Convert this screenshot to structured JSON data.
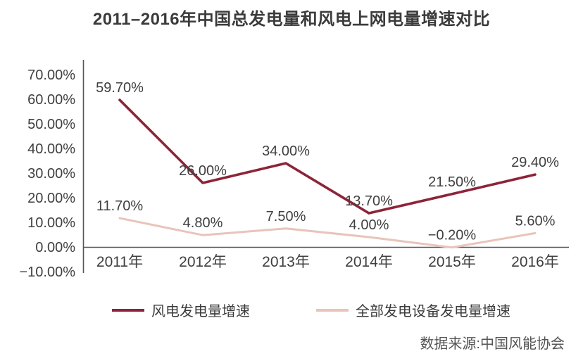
{
  "title": "2011–2016年中国总发电量和风电上网电量增速对比",
  "source": "数据来源:中国风能协会",
  "colors": {
    "axis": "#555555",
    "text": "#3f3f3f",
    "wind_series": "#8d2439",
    "all_series": "#e8c4ba"
  },
  "chart_data": {
    "type": "line",
    "title": "2011–2016年中国总发电量和风电上网电量增速对比",
    "xlabel": "",
    "ylabel": "",
    "categories": [
      "2011年",
      "2012年",
      "2013年",
      "2014年",
      "2015年",
      "2016年"
    ],
    "series": [
      {
        "name": "风电发电量增速",
        "color": "#8d2439",
        "values": [
          59.7,
          26.0,
          34.0,
          13.7,
          21.5,
          29.4
        ],
        "point_labels": [
          "59.70%",
          "26.00%",
          "34.00%",
          "13.70%",
          "21.50%",
          "29.40%"
        ]
      },
      {
        "name": "全部发电设备发电量增速",
        "color": "#e8c4ba",
        "values": [
          11.7,
          4.8,
          7.5,
          4.0,
          -0.2,
          5.6
        ],
        "point_labels": [
          "11.70%",
          "4.80%",
          "7.50%",
          "4.00%",
          "−0.20%",
          "5.60%"
        ]
      }
    ],
    "ylim": [
      -10,
      70
    ],
    "y_tick_values": [
      70,
      60,
      50,
      40,
      30,
      20,
      10,
      0,
      -10
    ],
    "y_ticks": [
      "70.00%",
      "60.00%",
      "50.00%",
      "40.00%",
      "30.00%",
      "20.00%",
      "10.00%",
      "0.00%",
      "−10.00%"
    ],
    "grid": false,
    "legend_position": "bottom"
  }
}
